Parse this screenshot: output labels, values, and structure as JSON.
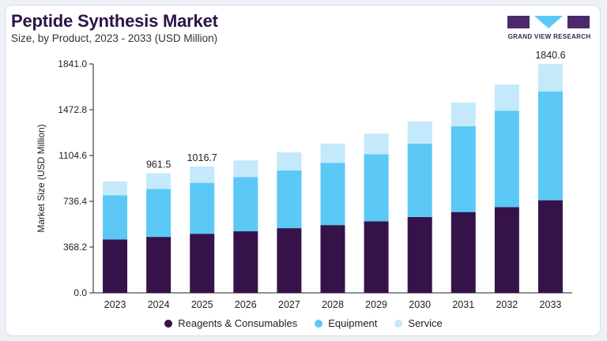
{
  "header": {
    "title": "Peptide Synthesis Market",
    "subtitle": "Size, by Product, 2023 - 2033 (USD Million)"
  },
  "logo": {
    "text": "GRAND VIEW RESEARCH"
  },
  "colors": {
    "reagents": "#36124a",
    "equipment": "#5bc8f5",
    "service": "#c3e9fb",
    "axis": "#222222"
  },
  "chart_data": {
    "type": "bar",
    "stacked": true,
    "categories": [
      "2023",
      "2024",
      "2025",
      "2026",
      "2027",
      "2028",
      "2029",
      "2030",
      "2031",
      "2032",
      "2033"
    ],
    "series": [
      {
        "name": "Reagents & Consumables",
        "values": [
          430,
          450,
          475,
          495,
          520,
          545,
          575,
          610,
          650,
          690,
          745
        ]
      },
      {
        "name": "Equipment",
        "values": [
          355,
          385,
          410,
          435,
          465,
          500,
          540,
          590,
          690,
          775,
          875
        ]
      },
      {
        "name": "Service",
        "values": [
          110,
          126.5,
          131.7,
          135,
          145,
          155,
          165,
          178,
          190,
          210,
          220.6
        ]
      }
    ],
    "ylabel": "Market Size (USD Million)",
    "yticks": [
      "0.0",
      "368.2",
      "736.4",
      "1104.6",
      "1472.8",
      "1841.0"
    ],
    "ylim": [
      0,
      1841
    ],
    "data_labels": [
      {
        "category": "2024",
        "text": "961.5"
      },
      {
        "category": "2025",
        "text": "1016.7"
      },
      {
        "category": "2033",
        "text": "1840.6"
      }
    ],
    "legend_position": "bottom",
    "grid": false
  }
}
